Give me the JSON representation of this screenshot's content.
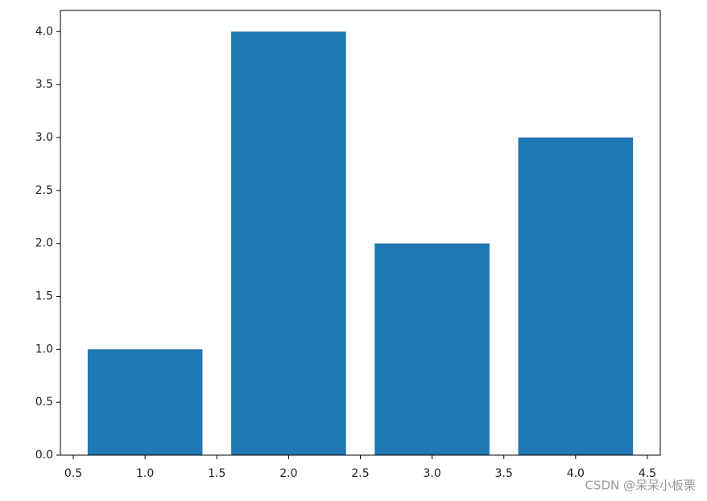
{
  "chart_data": {
    "type": "bar",
    "x": [
      1,
      2,
      3,
      4
    ],
    "values": [
      1,
      4,
      2,
      3
    ],
    "bar_width": 0.8,
    "color": "#1f77b4",
    "xlim": [
      0.41,
      4.59
    ],
    "xticks": [
      0.5,
      {
        "value": 1,
        "label": "1.0"
      },
      1.5,
      {
        "value": 2,
        "label": "2.0"
      },
      2.5,
      {
        "value": 3,
        "label": "3.0"
      },
      3.5,
      {
        "value": 4,
        "label": "4.0"
      },
      4.5
    ],
    "ylim": [
      0,
      4.2
    ],
    "yticks": [
      {
        "value": 0,
        "label": "0.0"
      },
      0.5,
      {
        "value": 1,
        "label": "1.0"
      },
      1.5,
      {
        "value": 2,
        "label": "2.0"
      },
      2.5,
      {
        "value": 3,
        "label": "3.0"
      },
      3.5,
      {
        "value": 4,
        "label": "4.0"
      }
    ],
    "grid": false,
    "watermark": "CSDN @呆呆小板栗"
  }
}
